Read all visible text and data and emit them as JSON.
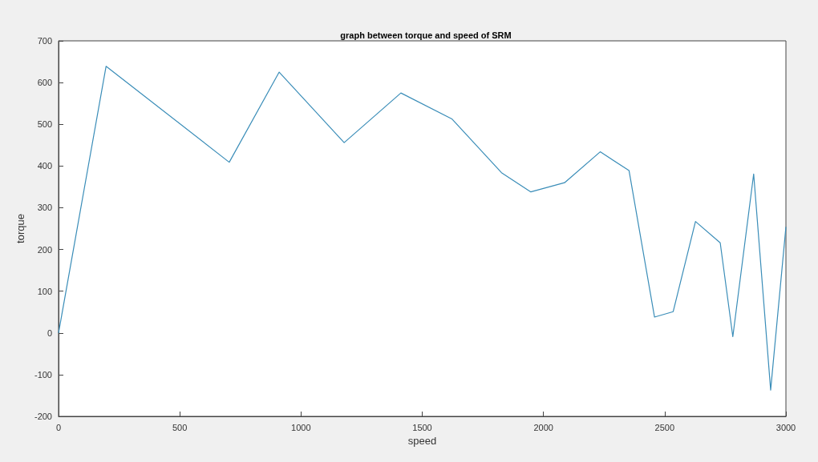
{
  "chart_data": {
    "type": "line",
    "title": "graph between torque and speed of SRM",
    "xlabel": "speed",
    "ylabel": "torque",
    "x": [
      0,
      196,
      704,
      910,
      1178,
      1412,
      1622,
      1827,
      1948,
      2087,
      2234,
      2353,
      2458,
      2535,
      2627,
      2729,
      2781,
      2867,
      2937,
      3000
    ],
    "series": [
      {
        "color": "#3a8db8",
        "values": [
          0,
          639,
          409,
          625,
          456,
          575,
          513,
          384,
          338,
          360,
          434,
          389,
          38,
          51,
          267,
          216,
          -9,
          381,
          -137,
          254
        ]
      }
    ],
    "xlim": [
      0,
      3000
    ],
    "xticks": [
      0,
      500,
      1000,
      1500,
      2000,
      2500,
      3000
    ],
    "ylim": [
      -200,
      700
    ],
    "yticks": [
      -200,
      -100,
      0,
      100,
      200,
      300,
      400,
      500,
      600,
      700
    ],
    "grid": false,
    "marker": "none",
    "line_style": "solid"
  }
}
